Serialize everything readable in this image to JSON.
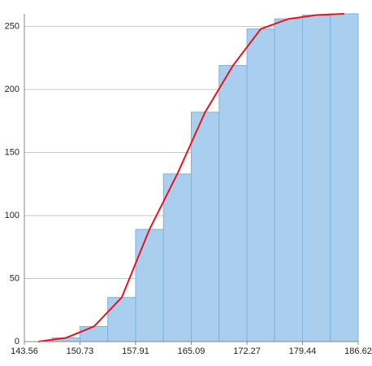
{
  "chart_data": {
    "type": "histogram",
    "bins": [
      143.56,
      147.15,
      150.73,
      154.32,
      157.91,
      161.5,
      165.09,
      168.68,
      172.27,
      175.85,
      179.44,
      183.03,
      186.62
    ],
    "values": [
      0,
      3,
      12,
      35,
      89,
      133,
      182,
      219,
      248,
      256,
      259,
      260
    ],
    "color": "#aacfee",
    "edge_color": "#7cb2e0",
    "xlim": [
      143.56,
      186.62
    ],
    "xticks": [
      143.56,
      150.73,
      157.91,
      165.09,
      172.27,
      179.44,
      186.62
    ],
    "ylim": [
      0,
      260
    ],
    "yticks": [
      0,
      50,
      100,
      150,
      200,
      250
    ],
    "grid": true,
    "overlay": {
      "type": "line",
      "x": [
        145.35,
        148.94,
        152.53,
        156.12,
        159.7,
        163.29,
        166.88,
        170.47,
        174.06,
        177.65,
        181.23,
        184.82
      ],
      "values": [
        0,
        3,
        12,
        35,
        89,
        133,
        182,
        219,
        248,
        256,
        259,
        260
      ],
      "color": "#e8141b"
    }
  }
}
